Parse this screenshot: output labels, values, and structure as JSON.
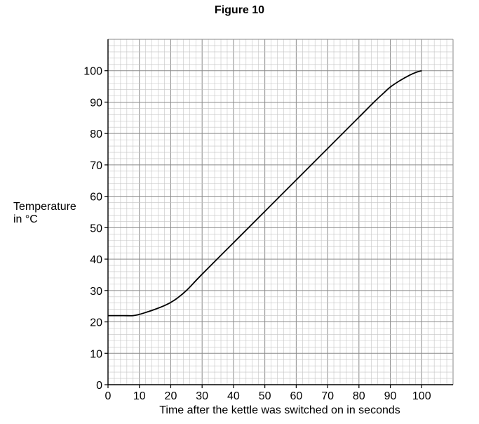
{
  "chart_data": {
    "type": "line",
    "title": "Figure 10",
    "xlabel": "Time after the kettle was switched on in seconds",
    "ylabel": [
      "Temperature",
      "in °C"
    ],
    "xlim": [
      0,
      110
    ],
    "ylim": [
      0,
      110
    ],
    "xticks": [
      0,
      10,
      20,
      30,
      40,
      50,
      60,
      70,
      80,
      90,
      100
    ],
    "yticks": [
      0,
      10,
      20,
      30,
      40,
      50,
      60,
      70,
      80,
      90,
      100
    ],
    "grid": true,
    "series": [
      {
        "x": [
          0,
          5,
          8,
          10,
          12,
          15,
          18,
          20,
          22,
          25,
          30,
          40,
          50,
          60,
          70,
          80,
          85,
          88,
          90,
          93,
          96,
          98,
          100
        ],
        "y": [
          22,
          22,
          22,
          22.4,
          23,
          24,
          25.2,
          26.2,
          27.5,
          30,
          35.2,
          45.2,
          55.2,
          65.2,
          75.2,
          85.2,
          90.2,
          93,
          94.8,
          96.8,
          98.5,
          99.4,
          100
        ]
      }
    ]
  }
}
